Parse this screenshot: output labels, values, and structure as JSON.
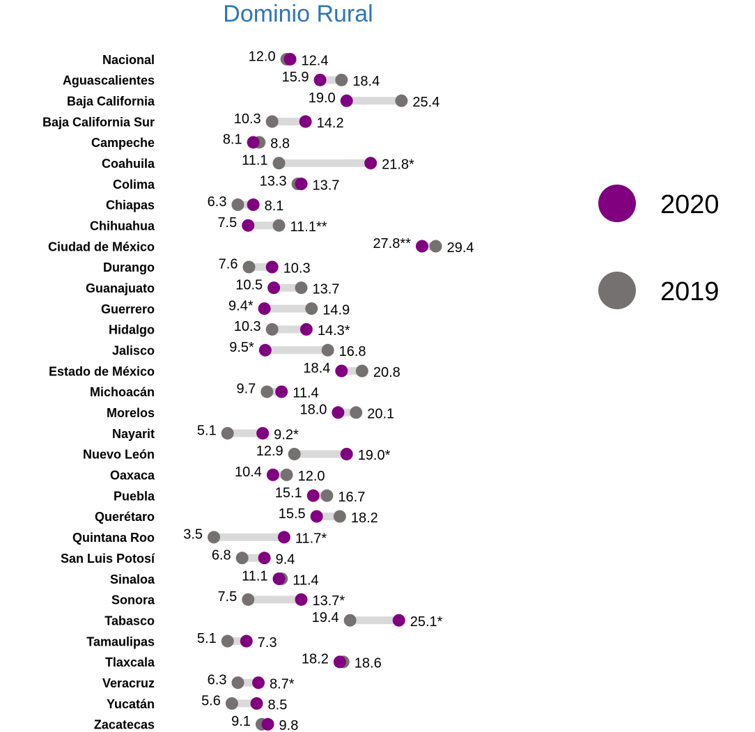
{
  "chart_data": {
    "type": "dumbbell",
    "title": "Dominio Rural",
    "categories": [
      "Nacional",
      "Aguascalientes",
      "Baja California",
      "Baja California Sur",
      "Campeche",
      "Coahuila",
      "Colima",
      "Chiapas",
      "Chihuahua",
      "Ciudad de México",
      "Durango",
      "Guanajuato",
      "Guerrero",
      "Hidalgo",
      "Jalisco",
      "Estado de México",
      "Michoacán",
      "Morelos",
      "Nayarit",
      "Nuevo León",
      "Oaxaca",
      "Puebla",
      "Querétaro",
      "Quintana Roo",
      "San Luis Potosí",
      "Sinaloa",
      "Sonora",
      "Tabasco",
      "Tamaulipas",
      "Tlaxcala",
      "Veracruz",
      "Yucatán",
      "Zacatecas"
    ],
    "series": [
      {
        "name": "2020",
        "color": "#800080",
        "values": [
          12.4,
          15.9,
          19.0,
          14.2,
          8.1,
          21.8,
          13.7,
          8.1,
          7.5,
          27.8,
          10.3,
          10.5,
          9.4,
          14.3,
          9.5,
          18.4,
          11.4,
          18.0,
          9.2,
          19.0,
          10.4,
          15.1,
          15.5,
          11.7,
          9.4,
          11.1,
          13.7,
          25.1,
          7.3,
          18.2,
          8.7,
          8.5,
          9.8
        ],
        "value_labels": [
          "12.4",
          "15.9",
          "19.0",
          "14.2",
          "8.1",
          "21.8*",
          "13.7",
          "8.1",
          "7.5",
          "27.8**",
          "10.3",
          "10.5",
          "9.4*",
          "14.3*",
          "9.5*",
          "18.4",
          "11.4",
          "18.0",
          "9.2*",
          "19.0*",
          "10.4",
          "15.1",
          "15.5",
          "11.7*",
          "9.4",
          "11.1",
          "13.7*",
          "25.1*",
          "7.3",
          "18.2",
          "8.7*",
          "8.5",
          "9.8"
        ]
      },
      {
        "name": "2019",
        "color": "#767171",
        "values": [
          12.0,
          18.4,
          25.4,
          10.3,
          8.8,
          11.1,
          13.3,
          6.3,
          11.1,
          29.4,
          7.6,
          13.7,
          14.9,
          10.3,
          16.8,
          20.8,
          9.7,
          20.1,
          5.1,
          12.9,
          12.0,
          16.7,
          18.2,
          3.5,
          6.8,
          11.4,
          7.5,
          19.4,
          5.1,
          18.6,
          6.3,
          5.6,
          9.1
        ],
        "value_labels": [
          "12.0",
          "18.4",
          "25.4",
          "10.3",
          "8.8",
          "11.1",
          "13.3",
          "6.3",
          "11.1**",
          "29.4",
          "7.6",
          "13.7",
          "14.9",
          "10.3",
          "16.8",
          "20.8",
          "9.7",
          "20.1",
          "5.1",
          "12.9",
          "12.0",
          "16.7",
          "18.2",
          "3.5",
          "6.8",
          "11.4",
          "7.5",
          "19.4",
          "5.1",
          "18.6",
          "6.3",
          "5.6",
          "9.1"
        ]
      }
    ]
  }
}
